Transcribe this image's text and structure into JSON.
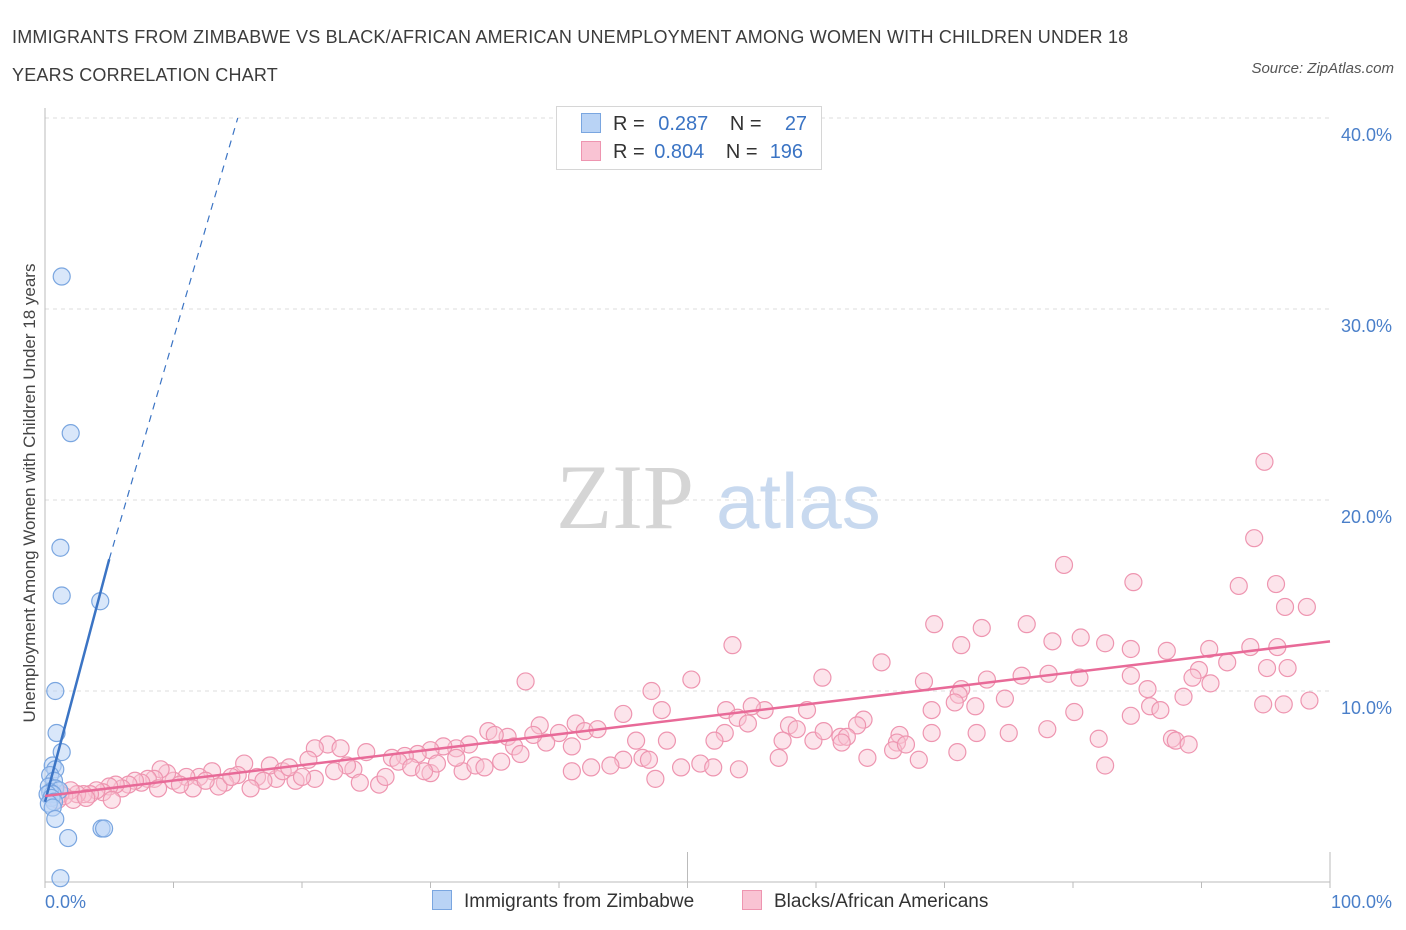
{
  "title": "IMMIGRANTS FROM ZIMBABWE VS BLACK/AFRICAN AMERICAN UNEMPLOYMENT AMONG WOMEN WITH CHILDREN UNDER 18 YEARS CORRELATION CHART",
  "source": "Source: ZipAtlas.com",
  "watermark": {
    "zip": "ZIP",
    "atlas": "atlas"
  },
  "legend": {
    "r_label": "R =",
    "n_label": "N =",
    "rows": [
      {
        "r": "0.287",
        "n": "27",
        "color": "#b9d3f5",
        "border": "#7aa6e0"
      },
      {
        "r": "0.804",
        "n": "196",
        "color": "#f9c3d3",
        "border": "#ee95b0"
      }
    ]
  },
  "bottom_legend": [
    {
      "label": "Immigrants from Zimbabwe",
      "color": "#b9d3f5",
      "border": "#7aa6e0"
    },
    {
      "label": "Blacks/African Americans",
      "color": "#f9c3d3",
      "border": "#ee95b0"
    }
  ],
  "chart_data": {
    "type": "scatter",
    "ylabel": "Unemployment Among Women with Children Under 18 years",
    "xlim": [
      0,
      100
    ],
    "ylim": [
      0,
      40
    ],
    "x_tick_labels": [
      "0.0%",
      "100.0%"
    ],
    "y_ticks": [
      10,
      20,
      30,
      40
    ],
    "y_tick_labels": [
      "10.0%",
      "20.0%",
      "30.0%",
      "40.0%"
    ],
    "grid": true,
    "colors": {
      "blue": "#3b74c4",
      "pink": "#e86a98"
    },
    "series": [
      {
        "name": "Immigrants from Zimbabwe",
        "trend": {
          "x": [
            0,
            5
          ],
          "y": [
            4.2,
            16.9
          ],
          "dashed_to": [
            15,
            40.0
          ]
        },
        "points": [
          [
            1.3,
            31.7
          ],
          [
            2.0,
            23.5
          ],
          [
            1.2,
            17.5
          ],
          [
            1.3,
            15.0
          ],
          [
            4.3,
            14.7
          ],
          [
            0.8,
            10.0
          ],
          [
            0.9,
            7.8
          ],
          [
            1.3,
            6.8
          ],
          [
            0.6,
            6.1
          ],
          [
            0.8,
            5.9
          ],
          [
            0.4,
            5.6
          ],
          [
            0.7,
            5.3
          ],
          [
            0.3,
            5.0
          ],
          [
            0.8,
            4.9
          ],
          [
            1.1,
            4.8
          ],
          [
            0.4,
            4.7
          ],
          [
            0.6,
            4.6
          ],
          [
            0.2,
            4.6
          ],
          [
            0.5,
            4.4
          ],
          [
            0.7,
            4.2
          ],
          [
            0.3,
            4.1
          ],
          [
            0.6,
            3.9
          ],
          [
            0.8,
            3.3
          ],
          [
            4.4,
            2.8
          ],
          [
            4.6,
            2.8
          ],
          [
            1.8,
            2.3
          ],
          [
            1.2,
            0.2
          ]
        ]
      },
      {
        "name": "Blacks/African Americans",
        "trend": {
          "x": [
            0,
            100
          ],
          "y": [
            4.5,
            12.6
          ]
        },
        "points": [
          [
            94.9,
            22.0
          ],
          [
            94.1,
            18.0
          ],
          [
            79.3,
            16.6
          ],
          [
            84.7,
            15.7
          ],
          [
            95.8,
            15.6
          ],
          [
            92.9,
            15.5
          ],
          [
            98.2,
            14.4
          ],
          [
            96.5,
            14.4
          ],
          [
            76.4,
            13.5
          ],
          [
            69.2,
            13.5
          ],
          [
            72.9,
            13.3
          ],
          [
            80.6,
            12.8
          ],
          [
            78.4,
            12.6
          ],
          [
            82.5,
            12.5
          ],
          [
            71.3,
            12.4
          ],
          [
            93.8,
            12.3
          ],
          [
            84.5,
            12.2
          ],
          [
            87.3,
            12.1
          ],
          [
            53.5,
            12.4
          ],
          [
            95.9,
            12.3
          ],
          [
            90.6,
            12.2
          ],
          [
            65.1,
            11.5
          ],
          [
            89.8,
            11.1
          ],
          [
            96.7,
            11.2
          ],
          [
            92.0,
            11.5
          ],
          [
            95.1,
            11.2
          ],
          [
            80.5,
            10.7
          ],
          [
            84.5,
            10.8
          ],
          [
            76.0,
            10.8
          ],
          [
            78.1,
            10.9
          ],
          [
            89.3,
            10.7
          ],
          [
            73.3,
            10.6
          ],
          [
            85.8,
            10.1
          ],
          [
            90.7,
            10.4
          ],
          [
            60.5,
            10.7
          ],
          [
            68.4,
            10.5
          ],
          [
            71.3,
            10.1
          ],
          [
            71.1,
            9.8
          ],
          [
            50.3,
            10.6
          ],
          [
            47.2,
            10.0
          ],
          [
            74.7,
            9.6
          ],
          [
            88.6,
            9.7
          ],
          [
            94.8,
            9.3
          ],
          [
            70.8,
            9.4
          ],
          [
            96.4,
            9.3
          ],
          [
            86.0,
            9.2
          ],
          [
            98.4,
            9.5
          ],
          [
            72.4,
            9.2
          ],
          [
            86.8,
            9.0
          ],
          [
            80.1,
            8.9
          ],
          [
            84.5,
            8.7
          ],
          [
            59.3,
            9.0
          ],
          [
            69.0,
            9.0
          ],
          [
            56.0,
            9.0
          ],
          [
            48.0,
            9.0
          ],
          [
            55.0,
            9.2
          ],
          [
            63.7,
            8.5
          ],
          [
            57.9,
            8.2
          ],
          [
            53.0,
            9.0
          ],
          [
            53.9,
            8.6
          ],
          [
            58.5,
            8.0
          ],
          [
            63.2,
            8.2
          ],
          [
            52.9,
            7.8
          ],
          [
            72.5,
            7.8
          ],
          [
            66.5,
            7.7
          ],
          [
            61.9,
            7.6
          ],
          [
            59.8,
            7.4
          ],
          [
            52.1,
            7.4
          ],
          [
            66.3,
            7.3
          ],
          [
            57.4,
            7.4
          ],
          [
            87.7,
            7.5
          ],
          [
            54.7,
            8.3
          ],
          [
            60.6,
            7.9
          ],
          [
            62.4,
            7.6
          ],
          [
            78.0,
            8.0
          ],
          [
            69.0,
            7.8
          ],
          [
            75.0,
            7.8
          ],
          [
            62.0,
            7.3
          ],
          [
            88.0,
            7.4
          ],
          [
            89.0,
            7.2
          ],
          [
            82.0,
            7.5
          ],
          [
            66.0,
            6.9
          ],
          [
            67.0,
            7.2
          ],
          [
            57.1,
            6.5
          ],
          [
            68.0,
            6.4
          ],
          [
            71.0,
            6.8
          ],
          [
            82.5,
            6.1
          ],
          [
            64.0,
            6.5
          ],
          [
            46.0,
            7.4
          ],
          [
            48.4,
            7.4
          ],
          [
            37.4,
            10.5
          ],
          [
            41.3,
            8.3
          ],
          [
            40.0,
            7.8
          ],
          [
            45.0,
            8.8
          ],
          [
            38.5,
            8.2
          ],
          [
            42.0,
            7.9
          ],
          [
            43.0,
            8.0
          ],
          [
            36.0,
            7.6
          ],
          [
            34.5,
            7.9
          ],
          [
            39.0,
            7.3
          ],
          [
            38.0,
            7.7
          ],
          [
            35.0,
            7.7
          ],
          [
            33.0,
            7.2
          ],
          [
            32.0,
            7.0
          ],
          [
            31.0,
            7.1
          ],
          [
            30.0,
            6.9
          ],
          [
            29.0,
            6.7
          ],
          [
            28.0,
            6.6
          ],
          [
            27.0,
            6.5
          ],
          [
            36.5,
            7.1
          ],
          [
            37.0,
            6.7
          ],
          [
            41.0,
            7.1
          ],
          [
            45.0,
            6.4
          ],
          [
            44.0,
            6.1
          ],
          [
            42.5,
            6.0
          ],
          [
            46.5,
            6.5
          ],
          [
            47.0,
            6.4
          ],
          [
            49.5,
            6.0
          ],
          [
            51.0,
            6.2
          ],
          [
            52.0,
            6.0
          ],
          [
            54.0,
            5.9
          ],
          [
            47.5,
            5.4
          ],
          [
            41.0,
            5.8
          ],
          [
            32.5,
            5.8
          ],
          [
            30.0,
            5.7
          ],
          [
            24.0,
            5.9
          ],
          [
            22.0,
            7.2
          ],
          [
            21.0,
            7.0
          ],
          [
            23.0,
            7.0
          ],
          [
            25.0,
            6.8
          ],
          [
            27.5,
            6.3
          ],
          [
            20.5,
            6.4
          ],
          [
            19.5,
            5.3
          ],
          [
            18.0,
            5.4
          ],
          [
            17.5,
            6.1
          ],
          [
            16.5,
            5.5
          ],
          [
            15.5,
            6.2
          ],
          [
            15.0,
            5.6
          ],
          [
            14.0,
            5.2
          ],
          [
            13.0,
            5.8
          ],
          [
            12.0,
            5.5
          ],
          [
            11.0,
            5.5
          ],
          [
            10.0,
            5.3
          ],
          [
            9.5,
            5.7
          ],
          [
            9.0,
            5.9
          ],
          [
            8.5,
            5.4
          ],
          [
            8.0,
            5.4
          ],
          [
            7.5,
            5.2
          ],
          [
            7.0,
            5.3
          ],
          [
            6.5,
            5.1
          ],
          [
            6.0,
            4.9
          ],
          [
            5.5,
            5.1
          ],
          [
            5.0,
            5.0
          ],
          [
            4.5,
            4.7
          ],
          [
            4.0,
            4.8
          ],
          [
            3.5,
            4.6
          ],
          [
            3.0,
            4.6
          ],
          [
            2.5,
            4.6
          ],
          [
            2.0,
            4.8
          ],
          [
            1.5,
            4.5
          ],
          [
            1.2,
            4.6
          ],
          [
            1.0,
            4.3
          ],
          [
            2.2,
            4.3
          ],
          [
            3.2,
            4.4
          ],
          [
            5.2,
            4.3
          ],
          [
            11.5,
            4.9
          ],
          [
            13.5,
            5.0
          ],
          [
            18.5,
            5.8
          ],
          [
            19.0,
            6.0
          ],
          [
            24.5,
            5.2
          ],
          [
            26.0,
            5.1
          ],
          [
            28.5,
            6.0
          ],
          [
            30.5,
            6.2
          ],
          [
            32.0,
            6.5
          ],
          [
            33.5,
            6.1
          ],
          [
            34.2,
            6.0
          ],
          [
            35.5,
            6.3
          ],
          [
            26.5,
            5.5
          ],
          [
            29.5,
            5.8
          ],
          [
            23.5,
            6.1
          ],
          [
            22.5,
            5.8
          ],
          [
            21.0,
            5.4
          ],
          [
            20.0,
            5.5
          ],
          [
            17.0,
            5.3
          ],
          [
            16.0,
            4.9
          ],
          [
            14.5,
            5.5
          ],
          [
            12.5,
            5.3
          ],
          [
            10.5,
            5.1
          ],
          [
            8.8,
            4.9
          ]
        ]
      }
    ]
  }
}
